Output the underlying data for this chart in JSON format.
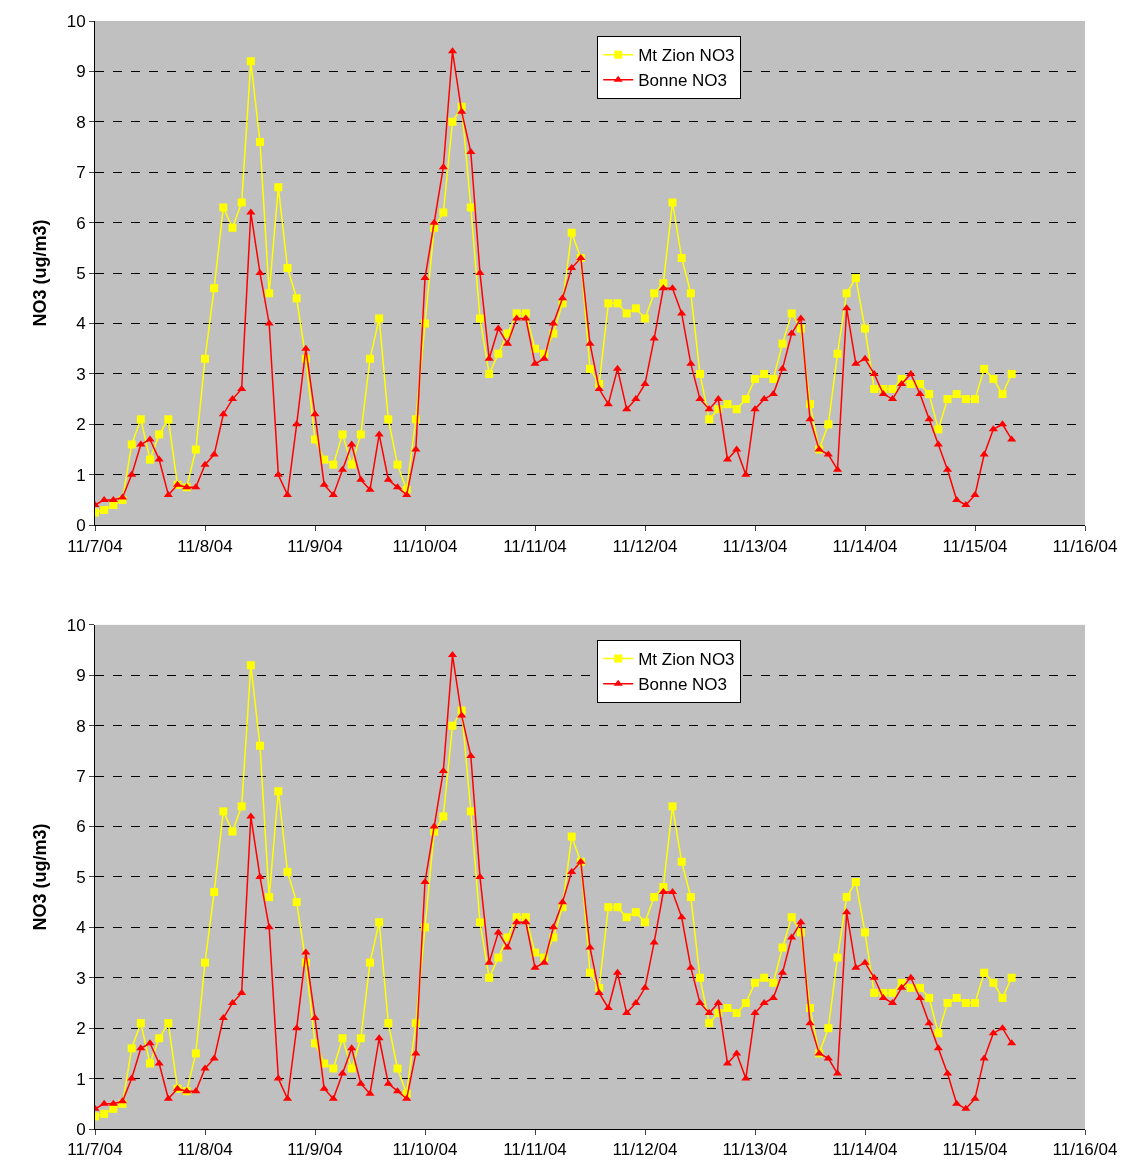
{
  "chart_data": [
    {
      "type": "line",
      "ylabel": "NO3 (ug/m3)",
      "xlim": [
        "--11-07",
        "--11-16"
      ],
      "xticks": [
        {
          "value": "--11-07",
          "label": "11/7/04"
        },
        {
          "value": "--11-08",
          "label": "11/8/04"
        },
        {
          "value": "--11-09",
          "label": "11/9/04"
        },
        {
          "value": "--11-10",
          "label": "11/10/04"
        },
        {
          "value": "--11-11",
          "label": "11/11/04"
        },
        {
          "value": "--11-12",
          "label": "11/12/04"
        },
        {
          "value": "--11-13",
          "label": "11/13/04"
        },
        {
          "value": "--11-14",
          "label": "11/14/04"
        },
        {
          "value": "--11-15",
          "label": "11/15/04"
        },
        {
          "value": "--11-16",
          "label": "11/16/04"
        }
      ],
      "ylim": [
        0,
        10
      ],
      "yticks": [
        0,
        1,
        2,
        3,
        4,
        5,
        6,
        7,
        8,
        9,
        10
      ],
      "grid": "y",
      "legend": "top",
      "line_style": "solid",
      "x": [
        "--11-07T00:00",
        "--11-07T02:00",
        "--11-07T04:00",
        "--11-07T06:00",
        "--11-07T08:00",
        "--11-07T10:00",
        "--11-07T12:00",
        "--11-07T14:00",
        "--11-07T16:00",
        "--11-07T18:00",
        "--11-07T20:00",
        "--11-07T22:00",
        "--11-08T00:00",
        "--11-08T02:00",
        "--11-08T04:00",
        "--11-08T06:00",
        "--11-08T08:00",
        "--11-08T10:00",
        "--11-08T12:00",
        "--11-08T14:00",
        "--11-08T16:00",
        "--11-08T18:00",
        "--11-08T20:00",
        "--11-08T22:00",
        "--11-09T00:00",
        "--11-09T02:00",
        "--11-09T04:00",
        "--11-09T06:00",
        "--11-09T08:00",
        "--11-09T10:00",
        "--11-09T12:00",
        "--11-09T14:00",
        "--11-09T16:00",
        "--11-09T18:00",
        "--11-09T20:00",
        "--11-09T22:00",
        "--11-10T00:00",
        "--11-10T02:00",
        "--11-10T04:00",
        "--11-10T06:00",
        "--11-10T08:00",
        "--11-10T10:00",
        "--11-10T12:00",
        "--11-10T14:00",
        "--11-10T16:00",
        "--11-10T18:00",
        "--11-10T20:00",
        "--11-10T22:00",
        "--11-11T00:00",
        "--11-11T02:00",
        "--11-11T04:00",
        "--11-11T06:00",
        "--11-11T08:00",
        "--11-11T10:00",
        "--11-11T12:00",
        "--11-11T14:00",
        "--11-11T16:00",
        "--11-11T18:00",
        "--11-11T20:00",
        "--11-11T22:00",
        "--11-12T00:00",
        "--11-12T02:00",
        "--11-12T04:00",
        "--11-12T06:00",
        "--11-12T08:00",
        "--11-12T10:00",
        "--11-12T12:00",
        "--11-12T14:00",
        "--11-12T16:00",
        "--11-12T18:00",
        "--11-12T20:00",
        "--11-12T22:00",
        "--11-13T00:00",
        "--11-13T02:00",
        "--11-13T04:00",
        "--11-13T06:00",
        "--11-13T08:00",
        "--11-13T10:00",
        "--11-13T12:00",
        "--11-13T14:00",
        "--11-13T16:00",
        "--11-13T18:00",
        "--11-13T20:00",
        "--11-13T22:00",
        "--11-14T00:00",
        "--11-14T02:00",
        "--11-14T04:00",
        "--11-14T06:00",
        "--11-14T08:00",
        "--11-14T10:00",
        "--11-14T12:00",
        "--11-14T14:00",
        "--11-14T16:00",
        "--11-14T18:00",
        "--11-14T20:00",
        "--11-14T22:00",
        "--11-15T00:00",
        "--11-15T02:00",
        "--11-15T04:00",
        "--11-15T06:00",
        "--11-15T08:00"
      ],
      "series": [
        {
          "name": "Mt Zion NO3",
          "color": "#ffff00",
          "marker": "square",
          "values": [
            0.25,
            0.3,
            0.4,
            0.5,
            1.6,
            2.1,
            1.3,
            1.8,
            2.1,
            0.8,
            0.75,
            1.5,
            3.3,
            4.7,
            6.3,
            5.9,
            6.4,
            9.2,
            7.6,
            4.6,
            6.7,
            5.1,
            4.5,
            3.3,
            1.7,
            1.3,
            1.2,
            1.8,
            1.2,
            1.8,
            3.3,
            4.1,
            2.1,
            1.2,
            0.7,
            2.1,
            4.0,
            5.9,
            6.2,
            8.0,
            8.3,
            6.3,
            4.1,
            3.0,
            3.4,
            3.8,
            4.2,
            4.2,
            3.5,
            3.4,
            3.8,
            4.4,
            5.8,
            5.3,
            3.1,
            2.8,
            4.4,
            4.4,
            4.2,
            4.3,
            4.1,
            4.6,
            4.8,
            6.4,
            5.3,
            4.6,
            3.0,
            2.1,
            2.3,
            2.4,
            2.3,
            2.5,
            2.9,
            3.0,
            2.9,
            3.6,
            4.2,
            3.9,
            2.4,
            1.5,
            2.0,
            3.4,
            4.6,
            4.9,
            3.9,
            2.7,
            2.7,
            2.7,
            2.9,
            2.8,
            2.8,
            2.6,
            1.9,
            2.5,
            2.6,
            2.5,
            2.5,
            3.1,
            2.9,
            2.6,
            3.0
          ]
        },
        {
          "name": "Bonne NO3",
          "color": "#ff0000",
          "marker": "triangle",
          "values": [
            0.4,
            0.5,
            0.5,
            0.55,
            1.0,
            1.6,
            1.7,
            1.3,
            0.6,
            0.8,
            0.75,
            0.75,
            1.2,
            1.4,
            2.2,
            2.5,
            2.7,
            6.2,
            5.0,
            4.0,
            1.0,
            0.6,
            2.0,
            3.5,
            2.2,
            0.8,
            0.6,
            1.1,
            1.6,
            0.9,
            0.7,
            1.8,
            0.9,
            0.75,
            0.6,
            1.5,
            4.9,
            6.0,
            7.1,
            9.4,
            8.2,
            7.4,
            5.0,
            3.3,
            3.9,
            3.6,
            4.1,
            4.1,
            3.2,
            3.3,
            4.0,
            4.5,
            5.1,
            5.3,
            3.6,
            2.7,
            2.4,
            3.1,
            2.3,
            2.5,
            2.8,
            3.7,
            4.7,
            4.7,
            4.2,
            3.2,
            2.5,
            2.3,
            2.5,
            1.3,
            1.5,
            1.0,
            2.3,
            2.5,
            2.6,
            3.1,
            3.8,
            4.1,
            2.1,
            1.5,
            1.4,
            1.1,
            4.3,
            3.2,
            3.3,
            3.0,
            2.6,
            2.5,
            2.8,
            3.0,
            2.6,
            2.1,
            1.6,
            1.1,
            0.5,
            0.4,
            0.6,
            1.4,
            1.9,
            2.0,
            1.7
          ]
        }
      ]
    },
    {
      "type": "line",
      "ylabel": "NO3 (ug/m3)",
      "xlim": [
        "--11-07",
        "--11-16"
      ],
      "xticks": [
        {
          "value": "--11-07",
          "label": "11/7/04"
        },
        {
          "value": "--11-08",
          "label": "11/8/04"
        },
        {
          "value": "--11-09",
          "label": "11/9/04"
        },
        {
          "value": "--11-10",
          "label": "11/10/04"
        },
        {
          "value": "--11-11",
          "label": "11/11/04"
        },
        {
          "value": "--11-12",
          "label": "11/12/04"
        },
        {
          "value": "--11-13",
          "label": "11/13/04"
        },
        {
          "value": "--11-14",
          "label": "11/14/04"
        },
        {
          "value": "--11-15",
          "label": "11/15/04"
        },
        {
          "value": "--11-16",
          "label": "11/16/04"
        }
      ],
      "ylim": [
        0,
        10
      ],
      "yticks": [
        0,
        1,
        2,
        3,
        4,
        5,
        6,
        7,
        8,
        9,
        10
      ],
      "grid": "y",
      "legend": "top",
      "line_style": "solid",
      "x": [
        "--11-07T00:00",
        "--11-07T02:00",
        "--11-07T04:00",
        "--11-07T06:00",
        "--11-07T08:00",
        "--11-07T10:00",
        "--11-07T12:00",
        "--11-07T14:00",
        "--11-07T16:00",
        "--11-07T18:00",
        "--11-07T20:00",
        "--11-07T22:00",
        "--11-08T00:00",
        "--11-08T02:00",
        "--11-08T04:00",
        "--11-08T06:00",
        "--11-08T08:00",
        "--11-08T10:00",
        "--11-08T12:00",
        "--11-08T14:00",
        "--11-08T16:00",
        "--11-08T18:00",
        "--11-08T20:00",
        "--11-08T22:00",
        "--11-09T00:00",
        "--11-09T02:00",
        "--11-09T04:00",
        "--11-09T06:00",
        "--11-09T08:00",
        "--11-09T10:00",
        "--11-09T12:00",
        "--11-09T14:00",
        "--11-09T16:00",
        "--11-09T18:00",
        "--11-09T20:00",
        "--11-09T22:00",
        "--11-10T00:00",
        "--11-10T02:00",
        "--11-10T04:00",
        "--11-10T06:00",
        "--11-10T08:00",
        "--11-10T10:00",
        "--11-10T12:00",
        "--11-10T14:00",
        "--11-10T16:00",
        "--11-10T18:00",
        "--11-10T20:00",
        "--11-10T22:00",
        "--11-11T00:00",
        "--11-11T02:00",
        "--11-11T04:00",
        "--11-11T06:00",
        "--11-11T08:00",
        "--11-11T10:00",
        "--11-11T12:00",
        "--11-11T14:00",
        "--11-11T16:00",
        "--11-11T18:00",
        "--11-11T20:00",
        "--11-11T22:00",
        "--11-12T00:00",
        "--11-12T02:00",
        "--11-12T04:00",
        "--11-12T06:00",
        "--11-12T08:00",
        "--11-12T10:00",
        "--11-12T12:00",
        "--11-12T14:00",
        "--11-12T16:00",
        "--11-12T18:00",
        "--11-12T20:00",
        "--11-12T22:00",
        "--11-13T00:00",
        "--11-13T02:00",
        "--11-13T04:00",
        "--11-13T06:00",
        "--11-13T08:00",
        "--11-13T10:00",
        "--11-13T12:00",
        "--11-13T14:00",
        "--11-13T16:00",
        "--11-13T18:00",
        "--11-13T20:00",
        "--11-13T22:00",
        "--11-14T00:00",
        "--11-14T02:00",
        "--11-14T04:00",
        "--11-14T06:00",
        "--11-14T08:00",
        "--11-14T10:00",
        "--11-14T12:00",
        "--11-14T14:00",
        "--11-14T16:00",
        "--11-14T18:00",
        "--11-14T20:00",
        "--11-14T22:00",
        "--11-15T00:00",
        "--11-15T02:00",
        "--11-15T04:00",
        "--11-15T06:00",
        "--11-15T08:00"
      ],
      "series": [
        {
          "name": "Mt Zion NO3",
          "color": "#ffff00",
          "marker": "square",
          "values": [
            0.25,
            0.3,
            0.4,
            0.5,
            1.6,
            2.1,
            1.3,
            1.8,
            2.1,
            0.8,
            0.75,
            1.5,
            3.3,
            4.7,
            6.3,
            5.9,
            6.4,
            9.2,
            7.6,
            4.6,
            6.7,
            5.1,
            4.5,
            3.3,
            1.7,
            1.3,
            1.2,
            1.8,
            1.2,
            1.8,
            3.3,
            4.1,
            2.1,
            1.2,
            0.7,
            2.1,
            4.0,
            5.9,
            6.2,
            8.0,
            8.3,
            6.3,
            4.1,
            3.0,
            3.4,
            3.8,
            4.2,
            4.2,
            3.5,
            3.4,
            3.8,
            4.4,
            5.8,
            5.3,
            3.1,
            2.8,
            4.4,
            4.4,
            4.2,
            4.3,
            4.1,
            4.6,
            4.8,
            6.4,
            5.3,
            4.6,
            3.0,
            2.1,
            2.3,
            2.4,
            2.3,
            2.5,
            2.9,
            3.0,
            2.9,
            3.6,
            4.2,
            3.9,
            2.4,
            1.5,
            2.0,
            3.4,
            4.6,
            4.9,
            3.9,
            2.7,
            2.7,
            2.7,
            2.9,
            2.8,
            2.8,
            2.6,
            1.9,
            2.5,
            2.6,
            2.5,
            2.5,
            3.1,
            2.9,
            2.6,
            3.0
          ]
        },
        {
          "name": "Bonne NO3",
          "color": "#ff0000",
          "marker": "triangle",
          "values": [
            0.4,
            0.5,
            0.5,
            0.55,
            1.0,
            1.6,
            1.7,
            1.3,
            0.6,
            0.8,
            0.75,
            0.75,
            1.2,
            1.4,
            2.2,
            2.5,
            2.7,
            6.2,
            5.0,
            4.0,
            1.0,
            0.6,
            2.0,
            3.5,
            2.2,
            0.8,
            0.6,
            1.1,
            1.6,
            0.9,
            0.7,
            1.8,
            0.9,
            0.75,
            0.6,
            1.5,
            4.9,
            6.0,
            7.1,
            9.4,
            8.2,
            7.4,
            5.0,
            3.3,
            3.9,
            3.6,
            4.1,
            4.1,
            3.2,
            3.3,
            4.0,
            4.5,
            5.1,
            5.3,
            3.6,
            2.7,
            2.4,
            3.1,
            2.3,
            2.5,
            2.8,
            3.7,
            4.7,
            4.7,
            4.2,
            3.2,
            2.5,
            2.3,
            2.5,
            1.3,
            1.5,
            1.0,
            2.3,
            2.5,
            2.6,
            3.1,
            3.8,
            4.1,
            2.1,
            1.5,
            1.4,
            1.1,
            4.3,
            3.2,
            3.3,
            3.0,
            2.6,
            2.5,
            2.8,
            3.0,
            2.6,
            2.1,
            1.6,
            1.1,
            0.5,
            0.4,
            0.6,
            1.4,
            1.9,
            2.0,
            1.7
          ]
        }
      ]
    }
  ]
}
